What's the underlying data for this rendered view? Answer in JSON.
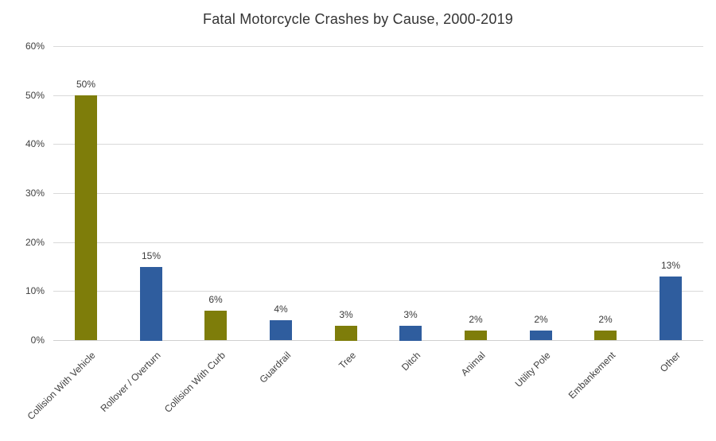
{
  "chart_data": {
    "type": "bar",
    "title": "Fatal Motorcycle Crashes by Cause, 2000-2019",
    "categories": [
      "Collision With Vehicle",
      "Rollover / Overturn",
      "Collision With Curb",
      "Guardrail",
      "Tree",
      "Ditch",
      "Animal",
      "Utility Pole",
      "Embankement",
      "Other"
    ],
    "values": [
      50,
      15,
      6,
      4,
      3,
      3,
      2,
      2,
      2,
      13
    ],
    "value_labels": [
      "50%",
      "15%",
      "6%",
      "4%",
      "3%",
      "3%",
      "2%",
      "2%",
      "2%",
      "13%"
    ],
    "bar_colors": [
      "#7E7D0A",
      "#2F5D9E",
      "#7E7D0A",
      "#2F5D9E",
      "#7E7D0A",
      "#2F5D9E",
      "#7E7D0A",
      "#2F5D9E",
      "#7E7D0A",
      "#2F5D9E"
    ],
    "xlabel": "",
    "ylabel": "",
    "ylim": [
      0,
      60
    ],
    "yticks": [
      0,
      10,
      20,
      30,
      40,
      50,
      60
    ],
    "ytick_labels": [
      "0%",
      "10%",
      "20%",
      "30%",
      "40%",
      "50%",
      "60%"
    ],
    "grid": "horizontal",
    "legend": "none",
    "gridline_color": "#D9D9D9",
    "text_color": "#404040",
    "background": "#FFFFFF"
  }
}
